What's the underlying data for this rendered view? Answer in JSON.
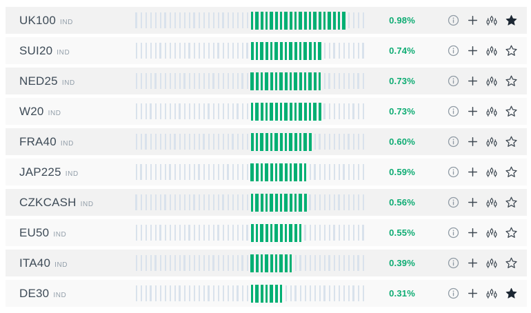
{
  "colors": {
    "row_odd_bg": "#f2f2f2",
    "row_even_bg": "#f9f9f9",
    "bar_light": "#d9e2ec",
    "bar_green": "#00af73",
    "pct_green": "#0eac73",
    "symbol_text": "#3e4b57",
    "type_text": "#929ea9",
    "icon_gray": "#8e99a3",
    "icon_dark": "#3c4650",
    "star_filled": "#1c2733"
  },
  "bars_config": {
    "total_bars": 48,
    "green_start_index": 24
  },
  "row_icons": [
    "info-icon",
    "plus-icon",
    "candlestick-chart-icon",
    "star-icon"
  ],
  "watchlist": {
    "rows": [
      {
        "symbol": "UK100",
        "type_label": "IND",
        "change": "0.98%",
        "green_bars": 20,
        "starred": true
      },
      {
        "symbol": "SUI20",
        "type_label": "IND",
        "change": "0.74%",
        "green_bars": 15,
        "starred": false
      },
      {
        "symbol": "NED25",
        "type_label": "IND",
        "change": "0.73%",
        "green_bars": 15,
        "starred": false
      },
      {
        "symbol": "W20",
        "type_label": "IND",
        "change": "0.73%",
        "green_bars": 15,
        "starred": false
      },
      {
        "symbol": "FRA40",
        "type_label": "IND",
        "change": "0.60%",
        "green_bars": 13,
        "starred": false
      },
      {
        "symbol": "JAP225",
        "type_label": "IND",
        "change": "0.59%",
        "green_bars": 12,
        "starred": false
      },
      {
        "symbol": "CZKCASH",
        "type_label": "IND",
        "change": "0.56%",
        "green_bars": 12,
        "starred": false
      },
      {
        "symbol": "EU50",
        "type_label": "IND",
        "change": "0.55%",
        "green_bars": 11,
        "starred": false
      },
      {
        "symbol": "ITA40",
        "type_label": "IND",
        "change": "0.39%",
        "green_bars": 9,
        "starred": false
      },
      {
        "symbol": "DE30",
        "type_label": "IND",
        "change": "0.31%",
        "green_bars": 7,
        "starred": true
      }
    ]
  }
}
